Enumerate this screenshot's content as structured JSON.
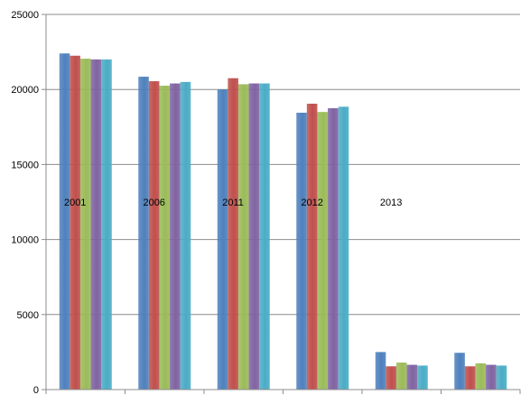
{
  "chart_data": {
    "type": "bar",
    "title": "",
    "xlabel": "",
    "ylabel": "",
    "ylim": [
      0,
      25000
    ],
    "y_ticks": [
      "0",
      "5000",
      "10000",
      "15000",
      "20000",
      "25000"
    ],
    "grid": "horizontal",
    "legend": "none",
    "categories": [
      "",
      "",
      "",
      "",
      "",
      ""
    ],
    "series": [
      {
        "color": "#4F81BD",
        "values": [
          22400,
          20850,
          20000,
          18450,
          2500,
          2450
        ]
      },
      {
        "color": "#C0504D",
        "values": [
          22250,
          20550,
          20750,
          19050,
          1550,
          1550
        ]
      },
      {
        "color": "#9BBB59",
        "values": [
          22050,
          20250,
          20350,
          18500,
          1800,
          1750
        ]
      },
      {
        "color": "#8064A2",
        "values": [
          22000,
          20400,
          20400,
          18750,
          1650,
          1650
        ]
      },
      {
        "color": "#4BACC6",
        "values": [
          22000,
          20500,
          20400,
          18850,
          1600,
          1600
        ]
      }
    ],
    "annotations": [
      "2001",
      "2006",
      "2011",
      "2012",
      "2013"
    ]
  }
}
